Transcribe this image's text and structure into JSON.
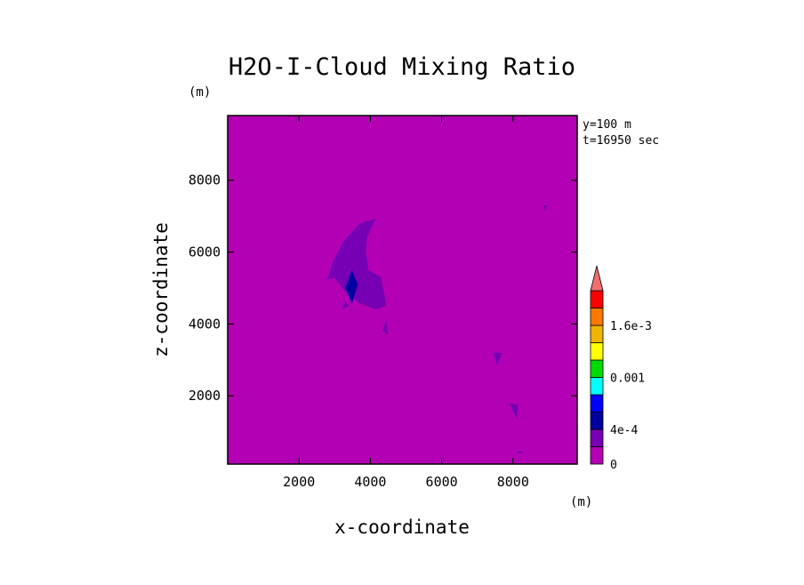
{
  "chart_data": {
    "type": "heatmap",
    "title": "H2O-I-Cloud Mixing Ratio",
    "xlabel": "x-coordinate",
    "ylabel": "z-coordinate",
    "x_unit": "(m)",
    "y_unit": "(m)",
    "info": [
      "y=100 m",
      "t=16950 sec"
    ],
    "xlim": [
      0,
      9800
    ],
    "ylim": [
      100,
      9800
    ],
    "x_ticks": [
      2000,
      4000,
      6000,
      8000
    ],
    "y_ticks": [
      2000,
      4000,
      6000,
      8000
    ],
    "x_tick_labels": [
      "2000",
      "4000",
      "6000",
      "8000"
    ],
    "y_tick_labels": [
      "2000",
      "4000",
      "6000",
      "8000"
    ],
    "grid": false,
    "background_value": 0,
    "colorbar": {
      "levels": [
        "0",
        "",
        "4e-4",
        "",
        "",
        "0.001",
        "",
        "",
        "1.6e-3",
        "",
        ""
      ],
      "colors": [
        "#b400b4",
        "#7800b4",
        "#0000a0",
        "#0000ff",
        "#00ffff",
        "#00dc00",
        "#ffff00",
        "#f0b400",
        "#ff7800",
        "#ff0000",
        "#f06e6e"
      ],
      "extend": "max"
    },
    "regions": [
      {
        "level_index": 1,
        "polygon": [
          [
            2800,
            5250
          ],
          [
            2950,
            5750
          ],
          [
            3250,
            6300
          ],
          [
            3700,
            6800
          ],
          [
            4150,
            6930
          ],
          [
            3910,
            6430
          ],
          [
            3880,
            6000
          ],
          [
            3950,
            5500
          ],
          [
            4300,
            5300
          ],
          [
            4400,
            4800
          ],
          [
            4450,
            4500
          ],
          [
            4150,
            4400
          ],
          [
            3650,
            4600
          ],
          [
            3250,
            4950
          ],
          [
            3000,
            5280
          ],
          [
            2650,
            5200
          ]
        ]
      },
      {
        "level_index": 1,
        "polygon": [
          [
            3200,
            4400
          ],
          [
            3400,
            4500
          ],
          [
            3300,
            4650
          ]
        ]
      },
      {
        "level_index": 1,
        "polygon": [
          [
            4350,
            3800
          ],
          [
            4500,
            3700
          ],
          [
            4450,
            4100
          ]
        ]
      },
      {
        "level_index": 1,
        "polygon": [
          [
            7450,
            3200
          ],
          [
            7700,
            3200
          ],
          [
            7550,
            2850
          ]
        ]
      },
      {
        "level_index": 1,
        "polygon": [
          [
            7880,
            1800
          ],
          [
            8140,
            1750
          ],
          [
            8120,
            1350
          ]
        ]
      },
      {
        "level_index": 1,
        "polygon": [
          [
            8850,
            7300
          ],
          [
            8950,
            7300
          ],
          [
            8900,
            7150
          ]
        ]
      },
      {
        "level_index": 1,
        "polygon": [
          [
            8100,
            450
          ],
          [
            8300,
            450
          ],
          [
            8200,
            380
          ]
        ]
      },
      {
        "level_index": 2,
        "polygon": [
          [
            3480,
            5500
          ],
          [
            3650,
            5100
          ],
          [
            3480,
            4560
          ],
          [
            3300,
            5000
          ]
        ]
      }
    ]
  }
}
